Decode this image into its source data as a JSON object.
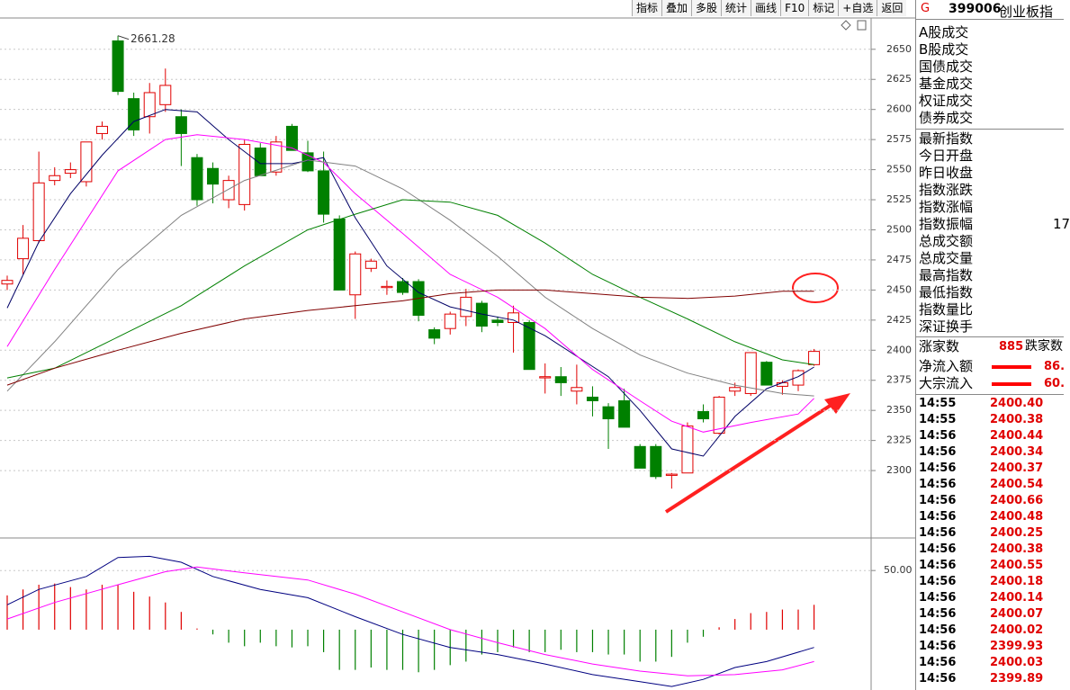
{
  "toolbar": [
    "指标",
    "叠加",
    "多股",
    "统计",
    "画线",
    "F10",
    "标记",
    "+自选",
    "返回"
  ],
  "chart_data": [
    {
      "type": "candlestick",
      "open": [
        2455,
        2476,
        2491,
        2541,
        2547,
        2540,
        2580,
        2657,
        2609,
        2594,
        2604,
        2594,
        2560,
        2551,
        2525,
        2521,
        2568,
        2548,
        2586,
        2564,
        2549,
        2509,
        2446,
        2468,
        2452,
        2457,
        2457,
        2417,
        2418,
        2428,
        2439,
        2425,
        2423,
        2423,
        2377,
        2378,
        2366,
        2361,
        2353,
        2358,
        2320,
        2320,
        2296,
        2298,
        2349,
        2331,
        2366,
        2364,
        2390,
        2370,
        2371,
        2388
      ],
      "high": [
        2462,
        2504,
        2565,
        2552,
        2556,
        2573,
        2590,
        2661.28,
        2614,
        2622,
        2634,
        2600,
        2563,
        2556,
        2545,
        2575,
        2572,
        2578,
        2588,
        2574,
        2565,
        2512,
        2482,
        2476,
        2458,
        2460,
        2459,
        2419,
        2432,
        2451,
        2441,
        2428,
        2437,
        2425,
        2389,
        2386,
        2388,
        2370,
        2356,
        2368,
        2322,
        2322,
        2298,
        2340,
        2355,
        2362,
        2373,
        2398,
        2391,
        2375,
        2384,
        2401
      ],
      "low": [
        2450,
        2463,
        2489,
        2537,
        2543,
        2536,
        2575,
        2612,
        2578,
        2580,
        2598,
        2553,
        2520,
        2522,
        2518,
        2516,
        2545,
        2545,
        2566,
        2548,
        2506,
        2450,
        2426,
        2465,
        2446,
        2446,
        2424,
        2405,
        2413,
        2420,
        2415,
        2420,
        2398,
        2384,
        2364,
        2362,
        2355,
        2345,
        2318,
        2336,
        2302,
        2293,
        2285,
        2298,
        2340,
        2330,
        2362,
        2362,
        2371,
        2363,
        2366,
        2387
      ],
      "close": [
        2458,
        2493,
        2539,
        2545,
        2550,
        2573,
        2586,
        2615,
        2583,
        2614,
        2620,
        2580,
        2525,
        2538,
        2541,
        2571,
        2545,
        2573,
        2566,
        2549,
        2513,
        2450,
        2480,
        2474,
        2453,
        2448,
        2429,
        2410,
        2430,
        2444,
        2420,
        2423,
        2431,
        2384,
        2378,
        2373,
        2369,
        2358,
        2343,
        2336,
        2302,
        2295,
        2297,
        2337,
        2343,
        2361,
        2369,
        2398,
        2371,
        2373,
        2383,
        2399
      ],
      "up_color": "#e00000",
      "down_color": "#008000",
      "high_label": "2661.28",
      "ylim": [
        2244,
        2676
      ],
      "yticks": [
        2300,
        2325,
        2350,
        2375,
        2400,
        2425,
        2450,
        2475,
        2500,
        2525,
        2550,
        2575,
        2600,
        2625,
        2650
      ],
      "grid": true,
      "series": [
        {
          "color": "#000066",
          "x": [
            0,
            2,
            4,
            6,
            8,
            10,
            12,
            14,
            16,
            18,
            20,
            22,
            24,
            26,
            28,
            30,
            32,
            34,
            36,
            38,
            40,
            42,
            44,
            46,
            48,
            50,
            51
          ],
          "values": [
            2435,
            2490,
            2530,
            2562,
            2590,
            2600,
            2598,
            2575,
            2555,
            2555,
            2560,
            2510,
            2470,
            2448,
            2436,
            2430,
            2425,
            2412,
            2395,
            2378,
            2350,
            2318,
            2312,
            2345,
            2368,
            2378,
            2386
          ]
        },
        {
          "color": "#ff00ff",
          "x": [
            0,
            3,
            7,
            10,
            12,
            15,
            18,
            20,
            22,
            25,
            28,
            31,
            34,
            37,
            40,
            42,
            44,
            47,
            50,
            51
          ],
          "values": [
            2403,
            2467,
            2549,
            2575,
            2579,
            2575,
            2568,
            2556,
            2530,
            2497,
            2463,
            2444,
            2418,
            2384,
            2358,
            2341,
            2332,
            2340,
            2347,
            2360
          ]
        },
        {
          "color": "#808080",
          "x": [
            0,
            3,
            7,
            11,
            15,
            19,
            22,
            25,
            28,
            31,
            34,
            37,
            40,
            43,
            46,
            49,
            51
          ],
          "values": [
            2366,
            2407,
            2467,
            2512,
            2541,
            2558,
            2553,
            2534,
            2508,
            2478,
            2444,
            2418,
            2396,
            2381,
            2371,
            2364,
            2362
          ]
        },
        {
          "color": "#008000",
          "x": [
            0,
            3,
            7,
            11,
            15,
            19,
            22,
            25,
            28,
            31,
            34,
            37,
            40,
            43,
            46,
            49,
            51
          ],
          "values": [
            2377,
            2385,
            2411,
            2437,
            2470,
            2500,
            2513,
            2525,
            2523,
            2512,
            2489,
            2463,
            2444,
            2426,
            2407,
            2392,
            2388
          ]
        },
        {
          "color": "#800000",
          "x": [
            0,
            3,
            7,
            11,
            15,
            19,
            22,
            25,
            28,
            31,
            34,
            37,
            40,
            43,
            46,
            49,
            51
          ],
          "values": [
            2371,
            2385,
            2400,
            2414,
            2426,
            2433,
            2437,
            2441,
            2447,
            2450,
            2450,
            2447,
            2444,
            2443,
            2445,
            2449,
            2449
          ]
        }
      ]
    },
    {
      "type": "bar",
      "values": [
        29,
        34,
        38,
        39,
        36,
        34,
        38,
        38,
        32,
        28,
        23,
        15,
        1,
        -4,
        -11,
        -14,
        -11,
        -14,
        -15,
        -14,
        -19,
        -34,
        -34,
        -32,
        -34,
        -34,
        -36,
        -34,
        -30,
        -27,
        -21,
        -19,
        -15,
        -19,
        -19,
        -17,
        -19,
        -19,
        -21,
        -21,
        -27,
        -27,
        -23,
        -11,
        -6,
        2,
        9,
        14,
        15,
        17,
        17,
        21
      ],
      "up_color": "#e00000",
      "down_color": "#008000",
      "ylim": [
        -51,
        76
      ],
      "yticks": [
        {
          "value": 50,
          "label": "50.00"
        }
      ],
      "series": [
        {
          "color": "#000080",
          "x": [
            0,
            2,
            5,
            7,
            9,
            11,
            13,
            16,
            19,
            22,
            25,
            28,
            31,
            34,
            37,
            40,
            42,
            44,
            46,
            48,
            51
          ],
          "values": [
            21,
            34,
            45,
            61,
            62,
            57,
            45,
            34,
            27,
            11,
            -4,
            -15,
            -21,
            -29,
            -38,
            -44,
            -48,
            -42,
            -32,
            -27,
            -15
          ]
        },
        {
          "color": "#ff00ff",
          "x": [
            0,
            3,
            7,
            10,
            12,
            15,
            19,
            22,
            25,
            28,
            31,
            34,
            37,
            40,
            43,
            46,
            49,
            51
          ],
          "values": [
            9,
            23,
            38,
            49,
            53,
            48,
            42,
            30,
            15,
            0,
            -11,
            -21,
            -29,
            -35,
            -39,
            -38,
            -34,
            -27
          ]
        }
      ]
    }
  ],
  "panel": {
    "flag": "G",
    "code": "399006",
    "name": "创业板指",
    "fields": [
      {
        "label": "A股成交"
      },
      {
        "label": "B股成交"
      },
      {
        "label": "国债成交"
      },
      {
        "label": "基金成交"
      },
      {
        "label": "权证成交"
      },
      {
        "label": "债券成交"
      },
      {
        "label": "最新指数"
      },
      {
        "label": "今日开盘"
      },
      {
        "label": "昨日收盘"
      },
      {
        "label": "指数涨跌"
      },
      {
        "label": "指数涨幅"
      },
      {
        "label": "指数振幅",
        "value": "17"
      },
      {
        "label": "总成交额"
      },
      {
        "label": "总成交量"
      },
      {
        "label": "最高指数"
      },
      {
        "label": "最低指数"
      },
      {
        "label": "指数量比"
      },
      {
        "label": "深证换手"
      }
    ],
    "breadth": {
      "up_label": "涨家数",
      "up_count": 885,
      "down_label": "跌家数"
    },
    "flows": [
      {
        "label": "净流入额",
        "value": "86."
      },
      {
        "label": "大宗流入",
        "value": "60."
      }
    ],
    "ticks": [
      {
        "time": "14:55",
        "price": "2400.40"
      },
      {
        "time": "14:55",
        "price": "2400.38"
      },
      {
        "time": "14:56",
        "price": "2400.44"
      },
      {
        "time": "14:56",
        "price": "2400.34"
      },
      {
        "time": "14:56",
        "price": "2400.37"
      },
      {
        "time": "14:56",
        "price": "2400.54"
      },
      {
        "time": "14:56",
        "price": "2400.66"
      },
      {
        "time": "14:56",
        "price": "2400.48"
      },
      {
        "time": "14:56",
        "price": "2400.25"
      },
      {
        "time": "14:56",
        "price": "2400.38"
      },
      {
        "time": "14:56",
        "price": "2400.55"
      },
      {
        "time": "14:56",
        "price": "2400.18"
      },
      {
        "time": "14:56",
        "price": "2400.14"
      },
      {
        "time": "14:56",
        "price": "2400.07"
      },
      {
        "time": "14:56",
        "price": "2400.02"
      },
      {
        "time": "14:56",
        "price": "2399.93"
      },
      {
        "time": "14:56",
        "price": "2400.03"
      },
      {
        "time": "14:56",
        "price": "2399.89"
      }
    ]
  }
}
